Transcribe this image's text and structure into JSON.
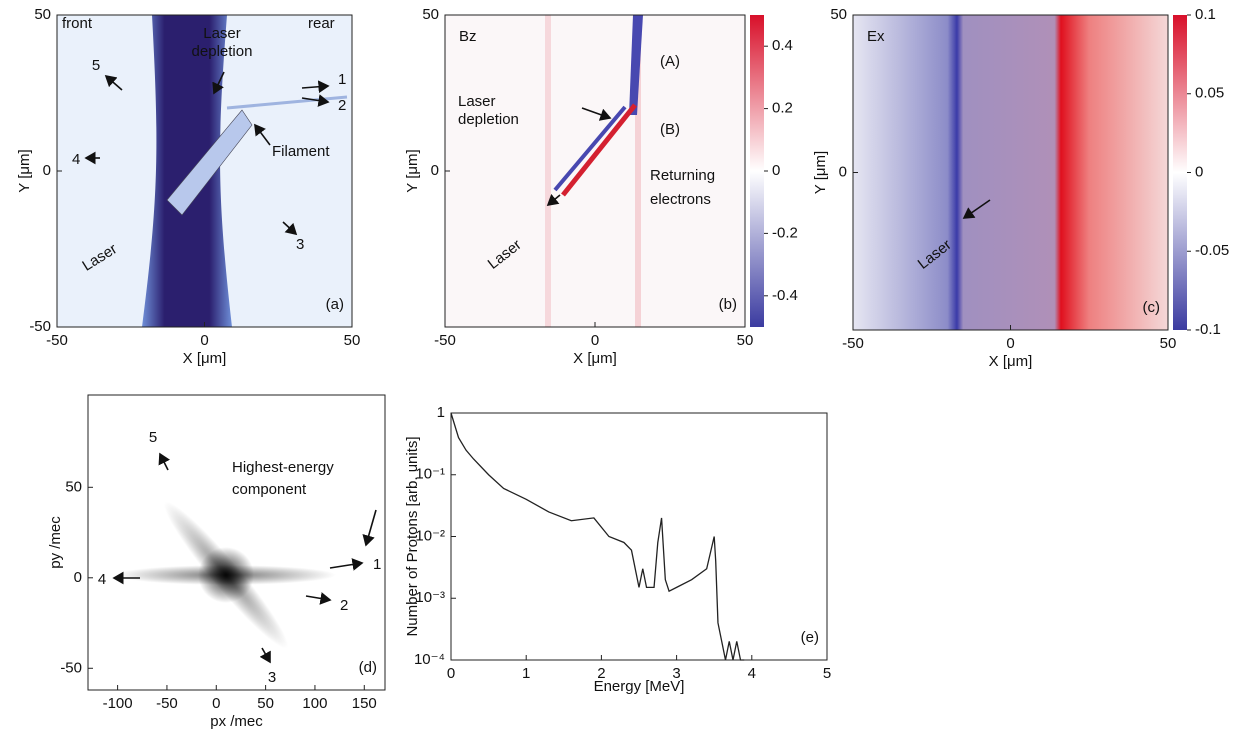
{
  "chart_data": [
    {
      "type": "heatmap",
      "panel_label": "(a)",
      "xlabel": "X [μm]",
      "ylabel": "Y [μm]",
      "xlim": [
        -50,
        50
      ],
      "ylim": [
        -50,
        50
      ],
      "xticks": [
        -50,
        0,
        50
      ],
      "yticks": [
        -50,
        0,
        50
      ],
      "annotations": [
        "front",
        "rear",
        "Laser",
        "depletion",
        "Filament",
        "Laser",
        "1",
        "2",
        "3",
        "4",
        "5"
      ]
    },
    {
      "type": "heatmap",
      "panel_label": "(b)",
      "title": "Bz",
      "xlabel": "X [μm]",
      "ylabel": "Y [μm]",
      "xlim": [
        -50,
        50
      ],
      "ylim": [
        -50,
        50
      ],
      "xticks": [
        -50,
        0,
        50
      ],
      "yticks": [
        0,
        50
      ],
      "clim": [
        -0.5,
        0.5
      ],
      "colorbar_ticks": [
        0.4,
        0.2,
        0,
        -0.2,
        -0.4
      ],
      "annotations": [
        "Laser",
        "depletion",
        "(A)",
        "(B)",
        "Returning",
        "electrons",
        "Laser"
      ]
    },
    {
      "type": "heatmap",
      "panel_label": "(c)",
      "title": "Ex",
      "xlabel": "X [μm]",
      "ylabel": "Y [μm]",
      "xlim": [
        -50,
        50
      ],
      "ylim": [
        -50,
        50
      ],
      "xticks": [
        -50,
        0,
        50
      ],
      "yticks": [
        0,
        50
      ],
      "clim": [
        -0.1,
        0.1
      ],
      "colorbar_ticks": [
        0.1,
        0.05,
        0,
        -0.05,
        -0.1
      ],
      "annotations": [
        "Laser"
      ]
    },
    {
      "type": "density",
      "panel_label": "(d)",
      "xlabel": "px /mec",
      "ylabel": "py /mec",
      "xlim": [
        -130,
        171
      ],
      "ylim": [
        -62,
        101
      ],
      "xticks": [
        -100,
        -50,
        0,
        50,
        100,
        150
      ],
      "yticks": [
        -50,
        0,
        50
      ],
      "annotations": [
        "Highest-energy",
        "component",
        "1",
        "2",
        "3",
        "4",
        "5"
      ]
    },
    {
      "type": "line",
      "panel_label": "(e)",
      "xlabel": "Energy [MeV]",
      "ylabel": "Number of Protons [arb. units]",
      "xlim": [
        0,
        5
      ],
      "ylim": [
        0.0001,
        1
      ],
      "log_y": true,
      "xticks": [
        0,
        1,
        2,
        3,
        4,
        5
      ],
      "yticks": [
        {
          "value": 0.0001,
          "label": "10⁻⁴"
        },
        {
          "value": 0.001,
          "label": "10⁻³"
        },
        {
          "value": 0.01,
          "label": "10⁻²"
        },
        {
          "value": 0.1,
          "label": "10⁻¹"
        },
        1
      ],
      "color": "#222",
      "x": [
        0,
        0.1,
        0.2,
        0.3,
        0.5,
        0.7,
        1.0,
        1.3,
        1.6,
        1.9,
        2.1,
        2.3,
        2.4,
        2.5,
        2.55,
        2.6,
        2.7,
        2.75,
        2.8,
        2.85,
        2.9,
        3.0,
        3.2,
        3.4,
        3.5,
        3.52,
        3.55,
        3.6,
        3.65,
        3.7,
        3.75,
        3.8,
        3.85,
        3.9
      ],
      "values": [
        1,
        0.4,
        0.25,
        0.18,
        0.1,
        0.06,
        0.04,
        0.025,
        0.018,
        0.02,
        0.01,
        0.008,
        0.006,
        0.0015,
        0.003,
        0.0015,
        0.0015,
        0.008,
        0.02,
        0.002,
        0.0013,
        0.0015,
        0.002,
        0.003,
        0.01,
        0.004,
        0.0004,
        0.0002,
        0.0001,
        0.0002,
        0.0001,
        0.0002,
        0.0001,
        0.0001
      ]
    }
  ]
}
